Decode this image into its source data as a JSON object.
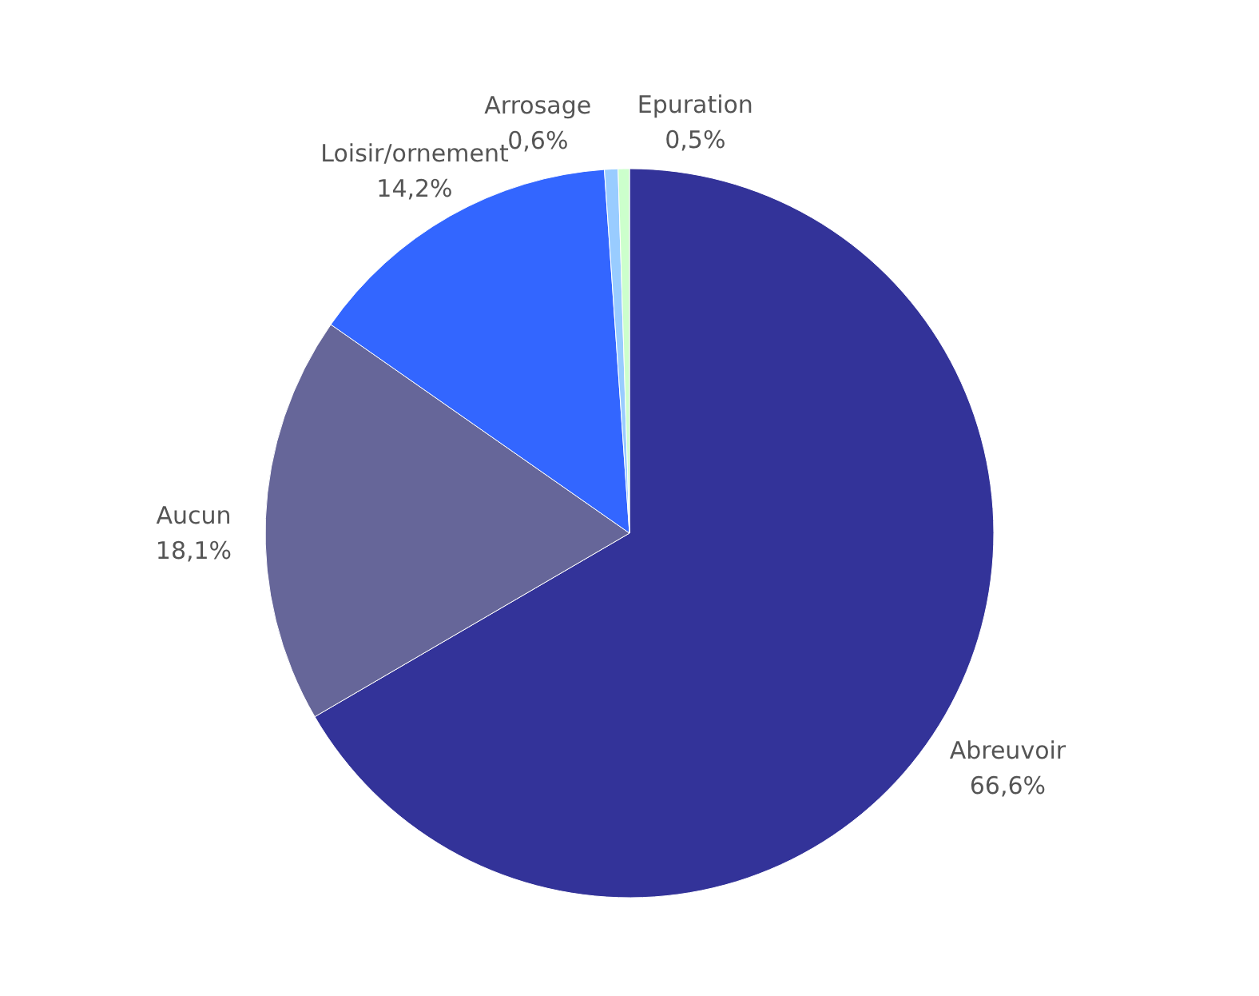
{
  "chart_data": {
    "type": "pie",
    "categories": [
      "Abreuvoir",
      "Aucun",
      "Loisir/ornement",
      "Arrosage",
      "Epuration"
    ],
    "values": [
      66.6,
      18.1,
      14.2,
      0.6,
      0.5
    ],
    "value_labels": [
      "66,6%",
      "18,1%",
      "14,2%",
      "0,6%",
      "0,5%"
    ],
    "colors": [
      "#333399",
      "#666699",
      "#3366ff",
      "#99ccff",
      "#ccffcc"
    ],
    "legend": false
  }
}
